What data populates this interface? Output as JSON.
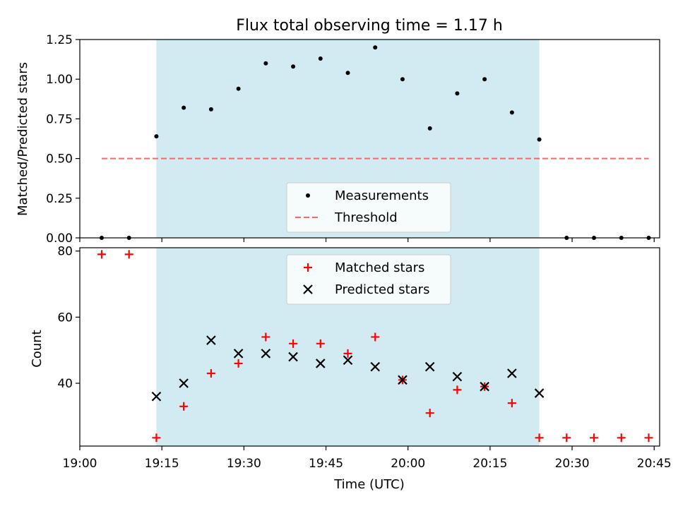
{
  "chart_data": [
    {
      "type": "scatter",
      "title": "Flux total observing time = 1.17 h",
      "xlabel": "",
      "ylabel": "Matched/Predicted stars",
      "xlim": [
        "19:00",
        "20:46"
      ],
      "ylim": [
        0,
        1.25
      ],
      "yticks": [
        "0.00",
        "0.25",
        "0.50",
        "0.75",
        "1.00",
        "1.25"
      ],
      "shaded_region": {
        "from": "19:14",
        "to": "20:24",
        "color": "#add8e6"
      },
      "legend": {
        "placement": "lower center"
      },
      "series": [
        {
          "name": "Measurements",
          "color": "#000000",
          "marker": "dot",
          "x": [
            "19:04",
            "19:09",
            "19:14",
            "19:19",
            "19:24",
            "19:29",
            "19:34",
            "19:39",
            "19:44",
            "19:49",
            "19:54",
            "19:59",
            "20:04",
            "20:09",
            "20:14",
            "20:19",
            "20:24",
            "20:29",
            "20:34",
            "20:39",
            "20:44"
          ],
          "y": [
            0,
            0,
            0.64,
            0.82,
            0.81,
            0.94,
            1.1,
            1.08,
            1.13,
            1.04,
            1.2,
            1.0,
            0.69,
            0.91,
            1.0,
            0.79,
            0.62,
            0,
            0,
            0,
            0
          ]
        },
        {
          "name": "Threshold",
          "color": "#ff6666",
          "style": "dashed",
          "x": [
            "19:04",
            "20:44"
          ],
          "y": [
            0.5,
            0.5
          ]
        }
      ]
    },
    {
      "type": "scatter",
      "title": "",
      "xlabel": "Time (UTC)",
      "ylabel": "Count",
      "xlim": [
        "19:00",
        "20:46"
      ],
      "ylim": [
        21,
        81
      ],
      "xticks": [
        "19:00",
        "19:15",
        "19:30",
        "19:45",
        "20:00",
        "20:15",
        "20:30",
        "20:45"
      ],
      "yticks": [
        "40",
        "60",
        "80"
      ],
      "shaded_region": {
        "from": "19:14",
        "to": "20:24",
        "color": "#add8e6"
      },
      "legend": {
        "placement": "upper center"
      },
      "series": [
        {
          "name": "Matched stars",
          "color": "#ff0000",
          "marker": "plus",
          "x": [
            "19:04",
            "19:09",
            "19:14",
            "19:19",
            "19:24",
            "19:29",
            "19:34",
            "19:39",
            "19:44",
            "19:49",
            "19:54",
            "19:59",
            "20:04",
            "20:09",
            "20:14",
            "20:19",
            "20:24",
            "20:29",
            "20:34",
            "20:39",
            "20:44"
          ],
          "y": [
            79,
            79,
            23.5,
            33,
            43,
            46,
            54,
            52,
            52,
            49,
            54,
            41,
            31,
            38,
            39,
            34,
            23.5,
            23.5,
            23.5,
            23.5,
            23.5
          ]
        },
        {
          "name": "Predicted stars",
          "color": "#000000",
          "marker": "x",
          "x": [
            "19:14",
            "19:19",
            "19:24",
            "19:29",
            "19:34",
            "19:39",
            "19:44",
            "19:49",
            "19:54",
            "19:59",
            "20:04",
            "20:09",
            "20:14",
            "20:19",
            "20:24"
          ],
          "y": [
            36,
            40,
            53,
            49,
            49,
            48,
            46,
            47,
            45,
            41,
            45,
            42,
            39,
            43,
            37
          ]
        }
      ]
    }
  ]
}
